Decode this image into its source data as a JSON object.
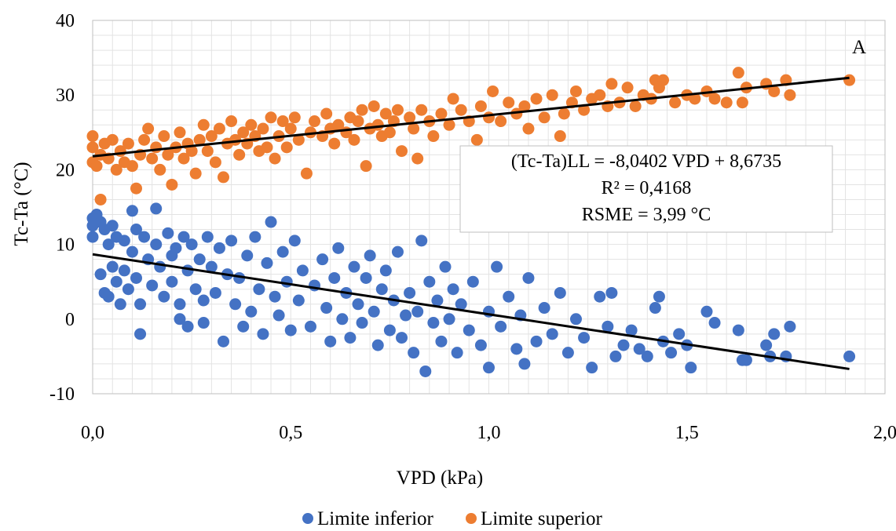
{
  "chart_data": {
    "type": "scatter",
    "panel_label": "A",
    "xlabel": "VPD (kPa)",
    "ylabel": "Tc-Ta (°C)",
    "xlim": [
      0,
      2
    ],
    "ylim": [
      -10,
      40
    ],
    "x_ticks": [
      0,
      0.5,
      1.0,
      1.5,
      2.0
    ],
    "x_tick_labels": [
      "0,0",
      "0,5",
      "1,0",
      "1,5",
      "2,0"
    ],
    "y_ticks": [
      -10,
      0,
      10,
      20,
      30,
      40
    ],
    "y_tick_labels": [
      "-10",
      "0",
      "10",
      "20",
      "30",
      "40"
    ],
    "grid": true,
    "legend_position": "bottom",
    "colors": {
      "lower": "#4472C4",
      "upper": "#ED7D31",
      "trend": "#000000"
    },
    "annotation": {
      "lines": [
        "(Tc-Ta)LL = -8,0402 VPD + 8,6735",
        "R² = 0,4168",
        "RSME = 3,99 °C"
      ]
    },
    "series": [
      {
        "name": "Limite inferior",
        "trend": {
          "slope": -8.0402,
          "intercept": 8.6735,
          "x_range": [
            0,
            1.91
          ]
        },
        "points": [
          [
            0.0,
            13.5
          ],
          [
            0.0,
            12.5
          ],
          [
            0.0,
            11.0
          ],
          [
            0.01,
            14.0
          ],
          [
            0.02,
            13.0
          ],
          [
            0.02,
            6.0
          ],
          [
            0.03,
            12.0
          ],
          [
            0.03,
            3.5
          ],
          [
            0.04,
            10.0
          ],
          [
            0.04,
            3.0
          ],
          [
            0.05,
            12.5
          ],
          [
            0.05,
            7.0
          ],
          [
            0.06,
            11.0
          ],
          [
            0.06,
            5.0
          ],
          [
            0.07,
            2.0
          ],
          [
            0.08,
            10.5
          ],
          [
            0.08,
            6.5
          ],
          [
            0.09,
            4.0
          ],
          [
            0.1,
            14.5
          ],
          [
            0.1,
            9.0
          ],
          [
            0.11,
            12.0
          ],
          [
            0.11,
            5.5
          ],
          [
            0.12,
            2.0
          ],
          [
            0.12,
            -2.0
          ],
          [
            0.13,
            11.0
          ],
          [
            0.14,
            8.0
          ],
          [
            0.15,
            4.5
          ],
          [
            0.16,
            14.8
          ],
          [
            0.16,
            10.0
          ],
          [
            0.17,
            7.0
          ],
          [
            0.18,
            3.0
          ],
          [
            0.19,
            11.5
          ],
          [
            0.2,
            8.5
          ],
          [
            0.2,
            5.0
          ],
          [
            0.21,
            9.5
          ],
          [
            0.22,
            2.0
          ],
          [
            0.22,
            0.0
          ],
          [
            0.23,
            11.0
          ],
          [
            0.24,
            6.5
          ],
          [
            0.24,
            -1.0
          ],
          [
            0.25,
            10.0
          ],
          [
            0.26,
            4.0
          ],
          [
            0.27,
            8.0
          ],
          [
            0.28,
            2.5
          ],
          [
            0.28,
            -0.5
          ],
          [
            0.29,
            11.0
          ],
          [
            0.3,
            7.0
          ],
          [
            0.31,
            3.5
          ],
          [
            0.32,
            9.5
          ],
          [
            0.33,
            -3.0
          ],
          [
            0.34,
            6.0
          ],
          [
            0.35,
            10.5
          ],
          [
            0.36,
            2.0
          ],
          [
            0.37,
            5.5
          ],
          [
            0.38,
            -1.0
          ],
          [
            0.39,
            8.5
          ],
          [
            0.4,
            1.0
          ],
          [
            0.41,
            11.0
          ],
          [
            0.42,
            4.0
          ],
          [
            0.43,
            -2.0
          ],
          [
            0.44,
            7.5
          ],
          [
            0.45,
            13.0
          ],
          [
            0.46,
            3.0
          ],
          [
            0.47,
            0.5
          ],
          [
            0.48,
            9.0
          ],
          [
            0.49,
            5.0
          ],
          [
            0.5,
            -1.5
          ],
          [
            0.51,
            10.5
          ],
          [
            0.52,
            2.5
          ],
          [
            0.53,
            6.5
          ],
          [
            0.55,
            -1.0
          ],
          [
            0.56,
            4.5
          ],
          [
            0.58,
            8.0
          ],
          [
            0.59,
            1.5
          ],
          [
            0.6,
            -3.0
          ],
          [
            0.61,
            5.5
          ],
          [
            0.62,
            9.5
          ],
          [
            0.63,
            0.0
          ],
          [
            0.64,
            3.5
          ],
          [
            0.65,
            -2.5
          ],
          [
            0.66,
            7.0
          ],
          [
            0.67,
            2.0
          ],
          [
            0.68,
            -0.5
          ],
          [
            0.69,
            5.5
          ],
          [
            0.7,
            8.5
          ],
          [
            0.71,
            1.0
          ],
          [
            0.72,
            -3.5
          ],
          [
            0.73,
            4.0
          ],
          [
            0.74,
            6.5
          ],
          [
            0.75,
            -1.5
          ],
          [
            0.76,
            2.5
          ],
          [
            0.77,
            9.0
          ],
          [
            0.78,
            -2.5
          ],
          [
            0.79,
            0.5
          ],
          [
            0.8,
            3.5
          ],
          [
            0.81,
            -4.5
          ],
          [
            0.82,
            1.0
          ],
          [
            0.83,
            10.5
          ],
          [
            0.84,
            -7.0
          ],
          [
            0.85,
            5.0
          ],
          [
            0.86,
            -0.5
          ],
          [
            0.87,
            2.5
          ],
          [
            0.88,
            -3.0
          ],
          [
            0.89,
            7.0
          ],
          [
            0.9,
            0.0
          ],
          [
            0.91,
            4.0
          ],
          [
            0.92,
            -4.5
          ],
          [
            0.93,
            2.0
          ],
          [
            0.95,
            -1.5
          ],
          [
            0.96,
            5.0
          ],
          [
            0.98,
            -3.5
          ],
          [
            1.0,
            1.0
          ],
          [
            1.0,
            -6.5
          ],
          [
            1.02,
            7.0
          ],
          [
            1.03,
            -1.0
          ],
          [
            1.05,
            3.0
          ],
          [
            1.07,
            -4.0
          ],
          [
            1.08,
            0.5
          ],
          [
            1.09,
            -6.0
          ],
          [
            1.1,
            5.5
          ],
          [
            1.12,
            -3.0
          ],
          [
            1.14,
            1.5
          ],
          [
            1.16,
            -2.0
          ],
          [
            1.18,
            3.5
          ],
          [
            1.2,
            -4.5
          ],
          [
            1.22,
            0.0
          ],
          [
            1.24,
            -2.5
          ],
          [
            1.26,
            -6.5
          ],
          [
            1.28,
            3.0
          ],
          [
            1.3,
            -1.0
          ],
          [
            1.31,
            3.5
          ],
          [
            1.32,
            -5.0
          ],
          [
            1.34,
            -3.5
          ],
          [
            1.36,
            -1.5
          ],
          [
            1.38,
            -4.0
          ],
          [
            1.4,
            -5.0
          ],
          [
            1.42,
            1.5
          ],
          [
            1.43,
            3.0
          ],
          [
            1.44,
            -3.0
          ],
          [
            1.46,
            -4.5
          ],
          [
            1.48,
            -2.0
          ],
          [
            1.5,
            -3.5
          ],
          [
            1.51,
            -6.5
          ],
          [
            1.55,
            1.0
          ],
          [
            1.57,
            -0.5
          ],
          [
            1.63,
            -1.5
          ],
          [
            1.64,
            -5.5
          ],
          [
            1.65,
            -5.5
          ],
          [
            1.7,
            -3.5
          ],
          [
            1.71,
            -5.0
          ],
          [
            1.72,
            -2.0
          ],
          [
            1.75,
            -5.0
          ],
          [
            1.76,
            -1.0
          ],
          [
            1.91,
            -5.0
          ]
        ]
      },
      {
        "name": "Limite superior",
        "trend": {
          "slope": 5.5,
          "intercept": 21.8,
          "x_range": [
            0,
            1.91
          ]
        },
        "points": [
          [
            0.0,
            24.5
          ],
          [
            0.0,
            23.0
          ],
          [
            0.0,
            21.0
          ],
          [
            0.01,
            20.5
          ],
          [
            0.02,
            22.0
          ],
          [
            0.02,
            16.0
          ],
          [
            0.03,
            23.5
          ],
          [
            0.04,
            21.5
          ],
          [
            0.05,
            24.0
          ],
          [
            0.06,
            20.0
          ],
          [
            0.07,
            22.5
          ],
          [
            0.08,
            21.0
          ],
          [
            0.09,
            23.5
          ],
          [
            0.1,
            20.5
          ],
          [
            0.11,
            17.5
          ],
          [
            0.12,
            22.0
          ],
          [
            0.13,
            24.0
          ],
          [
            0.14,
            25.5
          ],
          [
            0.15,
            21.5
          ],
          [
            0.16,
            23.0
          ],
          [
            0.17,
            20.0
          ],
          [
            0.18,
            24.5
          ],
          [
            0.19,
            22.0
          ],
          [
            0.2,
            18.0
          ],
          [
            0.21,
            23.0
          ],
          [
            0.22,
            25.0
          ],
          [
            0.23,
            21.5
          ],
          [
            0.24,
            23.5
          ],
          [
            0.25,
            22.5
          ],
          [
            0.26,
            19.5
          ],
          [
            0.27,
            24.0
          ],
          [
            0.28,
            26.0
          ],
          [
            0.29,
            22.5
          ],
          [
            0.3,
            24.5
          ],
          [
            0.31,
            21.0
          ],
          [
            0.32,
            25.5
          ],
          [
            0.33,
            19.0
          ],
          [
            0.34,
            23.5
          ],
          [
            0.35,
            26.5
          ],
          [
            0.36,
            24.0
          ],
          [
            0.37,
            22.0
          ],
          [
            0.38,
            25.0
          ],
          [
            0.39,
            23.5
          ],
          [
            0.4,
            26.0
          ],
          [
            0.41,
            24.5
          ],
          [
            0.42,
            22.5
          ],
          [
            0.43,
            25.5
          ],
          [
            0.44,
            23.0
          ],
          [
            0.45,
            27.0
          ],
          [
            0.46,
            21.5
          ],
          [
            0.47,
            24.5
          ],
          [
            0.48,
            26.5
          ],
          [
            0.49,
            23.0
          ],
          [
            0.5,
            25.5
          ],
          [
            0.51,
            27.0
          ],
          [
            0.52,
            24.0
          ],
          [
            0.54,
            19.5
          ],
          [
            0.55,
            25.0
          ],
          [
            0.56,
            26.5
          ],
          [
            0.58,
            24.5
          ],
          [
            0.59,
            27.5
          ],
          [
            0.6,
            25.5
          ],
          [
            0.61,
            23.5
          ],
          [
            0.62,
            26.0
          ],
          [
            0.64,
            25.0
          ],
          [
            0.65,
            27.0
          ],
          [
            0.66,
            24.0
          ],
          [
            0.67,
            26.5
          ],
          [
            0.68,
            28.0
          ],
          [
            0.69,
            20.5
          ],
          [
            0.7,
            25.5
          ],
          [
            0.71,
            28.5
          ],
          [
            0.72,
            26.0
          ],
          [
            0.73,
            24.5
          ],
          [
            0.74,
            27.5
          ],
          [
            0.75,
            25.0
          ],
          [
            0.76,
            26.5
          ],
          [
            0.77,
            28.0
          ],
          [
            0.78,
            22.5
          ],
          [
            0.8,
            27.0
          ],
          [
            0.81,
            25.5
          ],
          [
            0.82,
            21.5
          ],
          [
            0.83,
            28.0
          ],
          [
            0.85,
            26.5
          ],
          [
            0.86,
            24.5
          ],
          [
            0.88,
            27.5
          ],
          [
            0.9,
            26.0
          ],
          [
            0.91,
            29.5
          ],
          [
            0.93,
            28.0
          ],
          [
            0.95,
            26.5
          ],
          [
            0.97,
            24.0
          ],
          [
            0.98,
            28.5
          ],
          [
            1.0,
            27.0
          ],
          [
            1.01,
            30.5
          ],
          [
            1.03,
            26.5
          ],
          [
            1.05,
            29.0
          ],
          [
            1.07,
            27.5
          ],
          [
            1.09,
            28.5
          ],
          [
            1.1,
            25.5
          ],
          [
            1.12,
            29.5
          ],
          [
            1.14,
            27.0
          ],
          [
            1.16,
            30.0
          ],
          [
            1.18,
            24.5
          ],
          [
            1.19,
            27.5
          ],
          [
            1.21,
            29.0
          ],
          [
            1.22,
            30.5
          ],
          [
            1.24,
            28.0
          ],
          [
            1.26,
            29.5
          ],
          [
            1.28,
            30.0
          ],
          [
            1.3,
            28.5
          ],
          [
            1.31,
            31.5
          ],
          [
            1.33,
            29.0
          ],
          [
            1.35,
            31.0
          ],
          [
            1.37,
            28.5
          ],
          [
            1.39,
            30.0
          ],
          [
            1.41,
            29.5
          ],
          [
            1.42,
            32.0
          ],
          [
            1.43,
            31.0
          ],
          [
            1.44,
            32.0
          ],
          [
            1.47,
            29.0
          ],
          [
            1.5,
            30.0
          ],
          [
            1.52,
            29.5
          ],
          [
            1.55,
            30.5
          ],
          [
            1.57,
            29.5
          ],
          [
            1.6,
            29.0
          ],
          [
            1.63,
            33.0
          ],
          [
            1.64,
            29.0
          ],
          [
            1.65,
            31.0
          ],
          [
            1.7,
            31.5
          ],
          [
            1.72,
            30.5
          ],
          [
            1.75,
            32.0
          ],
          [
            1.76,
            30.0
          ],
          [
            1.91,
            32.0
          ]
        ]
      }
    ]
  }
}
